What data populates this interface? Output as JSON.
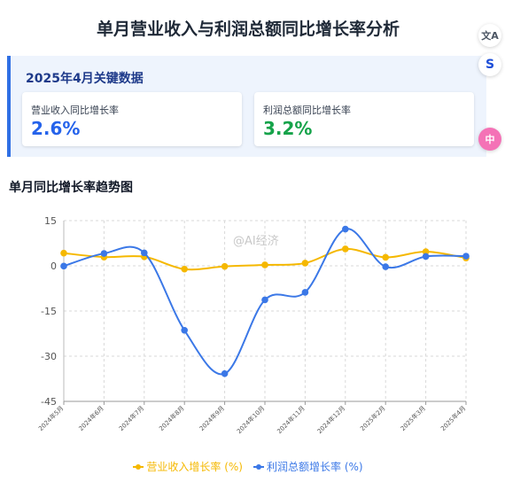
{
  "page": {
    "title": "单月营业收入与利润总额同比增长率分析"
  },
  "key_panel": {
    "title": "2025年4月关键数据",
    "cards": [
      {
        "label": "营业收入同比增长率",
        "value": "2.6%",
        "color": "#2563eb"
      },
      {
        "label": "利润总额同比增长率",
        "value": "3.2%",
        "color": "#16a34a"
      }
    ]
  },
  "section": {
    "title": "单月同比增长率趋势图"
  },
  "watermark": {
    "text": "@AI经济"
  },
  "side_buttons": [
    {
      "icon": "translate-icon",
      "glyph": "文A"
    },
    {
      "icon": "swirl-icon",
      "glyph": "S"
    },
    {
      "icon": "assistant-icon",
      "glyph": "中"
    }
  ],
  "chart_data": {
    "type": "line",
    "x": [
      "2024年5月",
      "2024年6月",
      "2024年7月",
      "2024年8月",
      "2024年9月",
      "2024年10月",
      "2024年11月",
      "2024年12月",
      "2025年2月",
      "2025年3月",
      "2025年4月"
    ],
    "series": [
      {
        "name": "营业收入增长率 (%)",
        "color": "#f5b800",
        "values": [
          4.2,
          2.9,
          3.0,
          -1.1,
          -0.2,
          0.3,
          0.9,
          5.6,
          2.8,
          4.7,
          2.6
        ]
      },
      {
        "name": "利润总额增长率 (%)",
        "color": "#3b78e7",
        "values": [
          -0.1,
          4.1,
          4.3,
          -21.4,
          -35.8,
          -11.3,
          -8.8,
          12.2,
          -0.3,
          3.1,
          3.2
        ]
      }
    ],
    "ylim": [
      -45,
      15
    ],
    "yticks": [
      15,
      0,
      -15,
      -30,
      -45
    ],
    "grid": true,
    "legend": "bottom"
  }
}
